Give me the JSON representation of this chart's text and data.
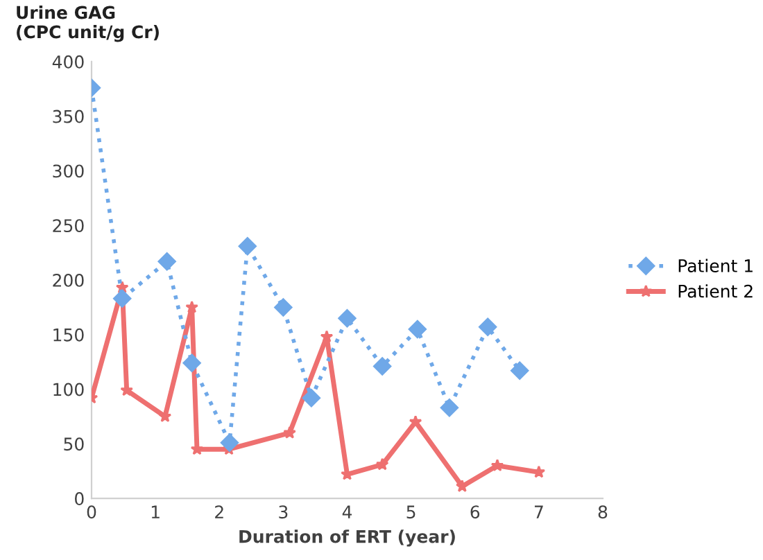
{
  "chart_data": {
    "type": "line",
    "ylabel": "Urine GAG\n(CPC unit/g Cr)",
    "xlabel": "Duration of ERT (year)",
    "xlim": [
      0,
      8
    ],
    "xticks": [
      0,
      1,
      2,
      3,
      4,
      5,
      6,
      7,
      8
    ],
    "ylim": [
      0,
      400
    ],
    "yticks": [
      0,
      50,
      100,
      150,
      200,
      250,
      300,
      350,
      400
    ],
    "grid": false,
    "legend": "right",
    "series": [
      {
        "name": "Patient 1",
        "color": "#6fa8e8",
        "marker": "diamond",
        "line_style": "dotted",
        "x": [
          0,
          0.48,
          1.18,
          1.57,
          2.16,
          2.44,
          3.0,
          3.44,
          4.0,
          4.55,
          5.1,
          5.6,
          6.2,
          6.7
        ],
        "values": [
          376,
          183,
          217,
          124,
          51,
          231,
          175,
          92,
          165,
          121,
          155,
          83,
          157,
          117
        ]
      },
      {
        "name": "Patient 2",
        "color": "#ee7070",
        "marker": "star",
        "line_style": "solid",
        "x": [
          0,
          0.48,
          0.55,
          1.15,
          1.57,
          1.65,
          2.15,
          3.1,
          3.68,
          4.0,
          4.55,
          5.07,
          5.8,
          6.35,
          7.0
        ],
        "values": [
          92,
          193,
          99,
          75,
          175,
          45,
          45,
          60,
          148,
          22,
          31,
          70,
          11,
          30,
          24
        ]
      }
    ]
  }
}
